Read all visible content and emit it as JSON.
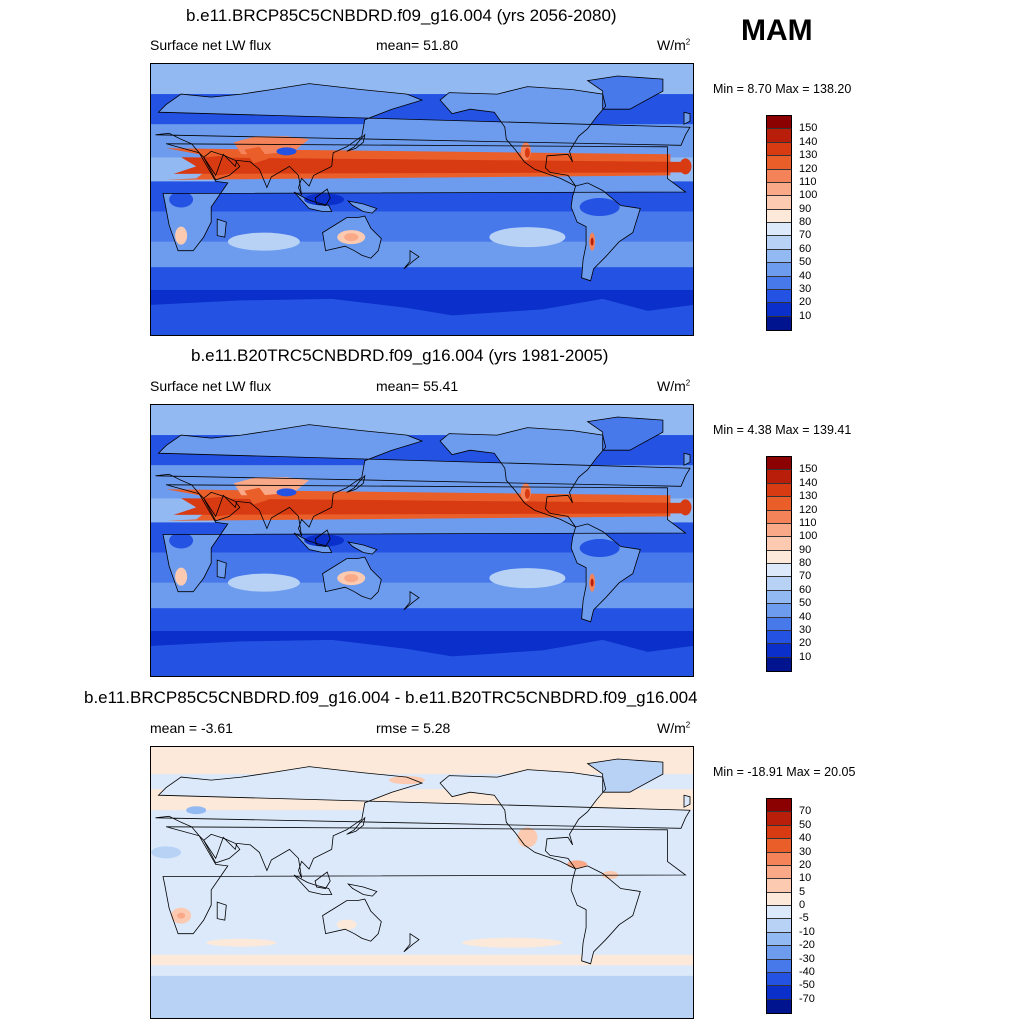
{
  "season": "MAM",
  "unit_base": "W/m",
  "unit_exp": "2",
  "panels": [
    {
      "title": "b.e11.BRCP85C5CNBDRD.f09_g16.004 (yrs 2056-2080)",
      "left_label": "Surface net LW flux",
      "stat_label": "mean=  51.80",
      "minmax": "Min =   8.70 Max = 138.20"
    },
    {
      "title": "b.e11.B20TRC5CNBDRD.f09_g16.004 (yrs 1981-2005)",
      "left_label": "Surface net LW flux",
      "stat_label": "mean=  55.41",
      "minmax": "Min =   4.38 Max = 139.41"
    },
    {
      "title": "b.e11.BRCP85C5CNBDRD.f09_g16.004 - b.e11.B20TRC5CNBDRD.f09_g16.004",
      "left_label": "mean =  -3.61",
      "stat_label": "rmse =   5.28",
      "minmax": "Min = -18.91 Max =  20.05"
    }
  ],
  "chart_data": [
    {
      "type": "heatmap",
      "title": "b.e11.BRCP85C5CNBDRD.f09_g16.004 (yrs 2056-2080)",
      "variable": "Surface net LW flux",
      "units": "W/m2",
      "mean": 51.8,
      "min": 8.7,
      "max": 138.2,
      "colorbar_levels": [
        "150",
        "140",
        "130",
        "120",
        "110",
        "100",
        "90",
        "80",
        "70",
        "60",
        "50",
        "40",
        "30",
        "20",
        "10"
      ],
      "colorbar_colors": [
        "#8b0000",
        "#b81e0a",
        "#d83a12",
        "#ea5e2a",
        "#f5835a",
        "#f9a888",
        "#fccab0",
        "#fde9d9",
        "#dbe9fb",
        "#b8d2f6",
        "#93b9f2",
        "#6d9cee",
        "#4879eb",
        "#2452e3",
        "#0a2fca",
        "#00148f"
      ]
    },
    {
      "type": "heatmap",
      "title": "b.e11.B20TRC5CNBDRD.f09_g16.004 (yrs 1981-2005)",
      "variable": "Surface net LW flux",
      "units": "W/m2",
      "mean": 55.41,
      "min": 4.38,
      "max": 139.41,
      "colorbar_levels": [
        "150",
        "140",
        "130",
        "120",
        "110",
        "100",
        "90",
        "80",
        "70",
        "60",
        "50",
        "40",
        "30",
        "20",
        "10"
      ],
      "colorbar_colors": [
        "#8b0000",
        "#b81e0a",
        "#d83a12",
        "#ea5e2a",
        "#f5835a",
        "#f9a888",
        "#fccab0",
        "#fde9d9",
        "#dbe9fb",
        "#b8d2f6",
        "#93b9f2",
        "#6d9cee",
        "#4879eb",
        "#2452e3",
        "#0a2fca",
        "#00148f"
      ]
    },
    {
      "type": "heatmap",
      "title": "b.e11.BRCP85C5CNBDRD.f09_g16.004 - b.e11.B20TRC5CNBDRD.f09_g16.004",
      "units": "W/m2",
      "mean": -3.61,
      "rmse": 5.28,
      "min": -18.91,
      "max": 20.05,
      "colorbar_levels": [
        "70",
        "50",
        "40",
        "30",
        "20",
        "10",
        "5",
        "0",
        "-5",
        "-10",
        "-20",
        "-30",
        "-40",
        "-50",
        "-70"
      ],
      "colorbar_colors": [
        "#8b0000",
        "#b81e0a",
        "#d83a12",
        "#ea5e2a",
        "#f5835a",
        "#f9a888",
        "#fccab0",
        "#fde9d9",
        "#dbe9fb",
        "#b8d2f6",
        "#93b9f2",
        "#6d9cee",
        "#4879eb",
        "#2452e3",
        "#0a2fca",
        "#00148f"
      ]
    }
  ]
}
